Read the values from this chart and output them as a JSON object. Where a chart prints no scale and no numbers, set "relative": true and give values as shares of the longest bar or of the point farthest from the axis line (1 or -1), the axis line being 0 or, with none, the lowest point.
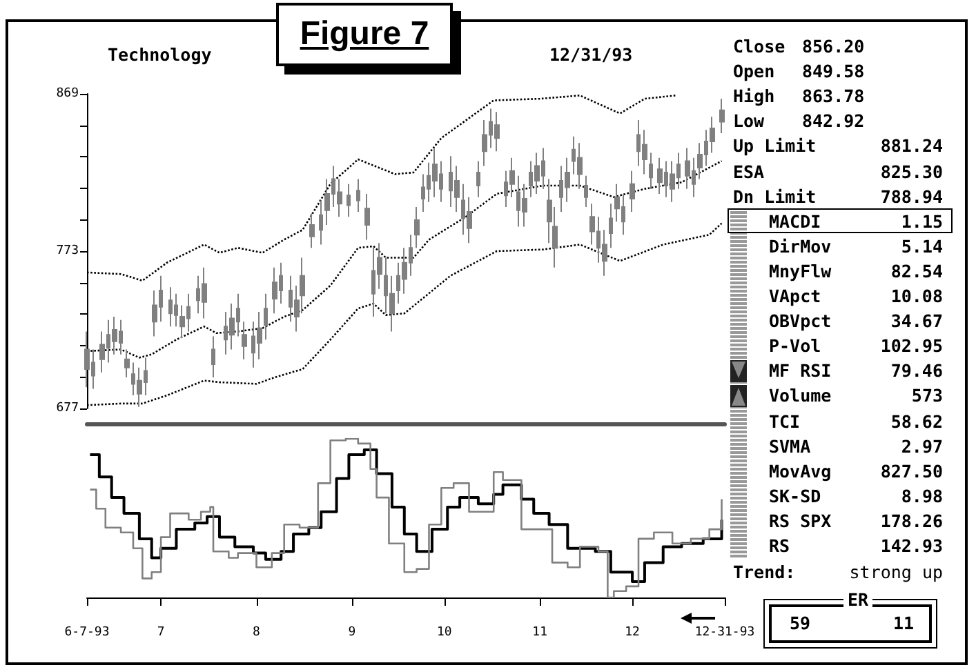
{
  "chart_data": [
    {
      "type": "candlestick",
      "title": "Technology",
      "subtitle": "12/31/93",
      "annotations": [
        "Figure 7"
      ],
      "x": [
        "1993-06-07",
        "1993-06-09",
        "1993-06-12",
        "1993-06-14",
        "1993-06-16",
        "1993-06-18",
        "1993-06-20",
        "1993-06-22",
        "1993-06-24",
        "1993-06-26",
        "1993-06-29",
        "1993-07-01",
        "1993-07-04",
        "1993-07-06",
        "1993-07-08",
        "1993-07-10",
        "1993-07-13",
        "1993-07-15",
        "1993-07-18",
        "1993-07-22",
        "1993-07-24",
        "1993-07-26",
        "1993-07-28",
        "1993-07-31",
        "1993-08-02",
        "1993-08-04",
        "1993-08-07",
        "1993-08-09",
        "1993-08-12",
        "1993-08-14",
        "1993-08-16",
        "1993-08-19",
        "1993-08-22",
        "1993-08-24",
        "1993-08-26",
        "1993-08-28",
        "1993-08-31",
        "1993-09-03",
        "1993-09-06",
        "1993-09-08",
        "1993-09-10",
        "1993-09-12",
        "1993-09-14",
        "1993-09-16",
        "1993-09-18",
        "1993-09-20",
        "1993-09-22",
        "1993-09-24",
        "1993-09-26",
        "1993-09-28",
        "1993-09-30",
        "1993-10-03",
        "1993-10-05",
        "1993-10-07",
        "1993-10-09",
        "1993-10-12",
        "1993-10-14",
        "1993-10-16",
        "1993-10-18",
        "1993-10-21",
        "1993-10-23",
        "1993-10-25",
        "1993-10-27",
        "1993-10-29",
        "1993-10-31",
        "1993-11-02",
        "1993-11-04",
        "1993-11-06",
        "1993-11-08",
        "1993-11-10",
        "1993-11-12",
        "1993-11-14",
        "1993-11-16",
        "1993-11-18",
        "1993-11-20",
        "1993-11-22",
        "1993-11-24",
        "1993-11-26",
        "1993-11-28",
        "1993-12-01",
        "1993-12-03",
        "1993-12-05",
        "1993-12-07",
        "1993-12-10",
        "1993-12-12",
        "1993-12-14",
        "1993-12-16",
        "1993-12-19",
        "1993-12-21",
        "1993-12-23",
        "1993-12-25",
        "1993-12-27",
        "1993-12-30"
      ],
      "ohlc": [
        [
          701,
          724,
          690,
          713
        ],
        [
          697,
          713,
          689,
          705
        ],
        [
          707,
          724,
          699,
          716
        ],
        [
          714,
          731,
          705,
          722
        ],
        [
          718,
          733,
          710,
          725
        ],
        [
          717,
          731,
          710,
          724
        ],
        [
          702,
          713,
          696,
          707
        ],
        [
          692,
          705,
          685,
          698
        ],
        [
          686,
          702,
          678,
          694
        ],
        [
          693,
          708,
          685,
          700
        ],
        [
          730,
          749,
          721,
          740
        ],
        [
          739,
          758,
          730,
          749
        ],
        [
          735,
          751,
          727,
          743
        ],
        [
          734,
          747,
          727,
          740
        ],
        [
          727,
          740,
          720,
          733
        ],
        [
          732,
          747,
          724,
          739
        ],
        [
          743,
          758,
          735,
          750
        ],
        [
          742,
          763,
          732,
          753
        ],
        [
          704,
          721,
          696,
          713
        ],
        [
          719,
          736,
          710,
          727
        ],
        [
          722,
          741,
          713,
          732
        ],
        [
          730,
          747,
          721,
          738
        ],
        [
          715,
          730,
          707,
          722
        ],
        [
          711,
          730,
          702,
          721
        ],
        [
          717,
          736,
          707,
          726
        ],
        [
          728,
          747,
          719,
          738
        ],
        [
          744,
          763,
          735,
          754
        ],
        [
          749,
          766,
          741,
          758
        ],
        [
          739,
          758,
          730,
          749
        ],
        [
          733,
          752,
          724,
          743
        ],
        [
          746,
          769,
          735,
          758
        ],
        [
          782,
          796,
          775,
          789
        ],
        [
          786,
          804,
          777,
          795
        ],
        [
          798,
          817,
          789,
          808
        ],
        [
          808,
          825,
          800,
          817
        ],
        [
          802,
          817,
          794,
          809
        ],
        [
          801,
          814,
          794,
          807
        ],
        [
          804,
          817,
          797,
          810
        ],
        [
          789,
          808,
          780,
          799
        ],
        [
          747,
          775,
          733,
          761
        ],
        [
          759,
          778,
          750,
          769
        ],
        [
          746,
          769,
          735,
          758
        ],
        [
          735,
          758,
          724,
          747
        ],
        [
          749,
          766,
          741,
          758
        ],
        [
          756,
          775,
          747,
          766
        ],
        [
          766,
          783,
          758,
          775
        ],
        [
          783,
          800,
          775,
          792
        ],
        [
          805,
          820,
          797,
          812
        ],
        [
          811,
          827,
          803,
          819
        ],
        [
          816,
          836,
          806,
          826
        ],
        [
          811,
          828,
          803,
          820
        ],
        [
          810,
          831,
          800,
          821
        ],
        [
          806,
          825,
          797,
          816
        ],
        [
          793,
          814,
          783,
          804
        ],
        [
          787,
          806,
          778,
          797
        ],
        [
          813,
          828,
          806,
          821
        ],
        [
          834,
          853,
          825,
          844
        ],
        [
          844,
          860,
          836,
          852
        ],
        [
          842,
          858,
          834,
          850
        ],
        [
          807,
          822,
          800,
          815
        ],
        [
          814,
          830,
          806,
          822
        ],
        [
          798,
          819,
          788,
          809
        ],
        [
          797,
          814,
          788,
          805
        ],
        [
          813,
          828,
          806,
          821
        ],
        [
          816,
          833,
          808,
          825
        ],
        [
          819,
          836,
          811,
          828
        ],
        [
          791,
          817,
          778,
          804
        ],
        [
          775,
          800,
          763,
          788
        ],
        [
          806,
          825,
          797,
          816
        ],
        [
          812,
          830,
          803,
          821
        ],
        [
          828,
          843,
          820,
          835
        ],
        [
          820,
          839,
          811,
          830
        ],
        [
          806,
          819,
          800,
          813
        ],
        [
          785,
          802,
          777,
          794
        ],
        [
          775,
          794,
          766,
          785
        ],
        [
          767,
          786,
          758,
          777
        ],
        [
          784,
          802,
          775,
          793
        ],
        [
          799,
          814,
          791,
          806
        ],
        [
          791,
          808,
          783,
          800
        ],
        [
          805,
          822,
          797,
          814
        ],
        [
          834,
          853,
          825,
          844
        ],
        [
          829,
          847,
          820,
          838
        ],
        [
          818,
          833,
          811,
          826
        ],
        [
          815,
          830,
          808,
          823
        ],
        [
          813,
          828,
          806,
          821
        ],
        [
          811,
          828,
          803,
          820
        ],
        [
          818,
          833,
          811,
          826
        ],
        [
          819,
          836,
          811,
          828
        ],
        [
          814,
          830,
          806,
          822
        ],
        [
          824,
          839,
          817,
          832
        ],
        [
          832,
          847,
          825,
          840
        ],
        [
          840,
          855,
          833,
          848
        ],
        [
          852,
          866,
          845,
          859
        ]
      ],
      "color": "#808080",
      "series": [
        {
          "type": "line",
          "color": "#000000",
          "line_style": "dotted",
          "marker": "none",
          "x": [
            "1993-06-07",
            "1993-06-18",
            "1993-06-25",
            "1993-07-03",
            "1993-07-15",
            "1993-07-20",
            "1993-07-26",
            "1993-08-03",
            "1993-08-10",
            "1993-08-16",
            "1993-08-25",
            "1993-09-03",
            "1993-09-15",
            "1993-09-21",
            "1993-09-30",
            "1993-10-17",
            "1993-11-01",
            "1993-11-14",
            "1993-11-27",
            "1993-12-05",
            "1993-12-15"
          ],
          "values": [
            760,
            759,
            755,
            766,
            777,
            772,
            775,
            772,
            780,
            786,
            814,
            829,
            820,
            821,
            842,
            865,
            866,
            868,
            857,
            866,
            868
          ]
        },
        {
          "type": "line",
          "color": "#000000",
          "line_style": "dotted",
          "marker": "none",
          "x": [
            "1993-06-07",
            "1993-06-18",
            "1993-06-24",
            "1993-06-28",
            "1993-07-06",
            "1993-07-15",
            "1993-07-19",
            "1993-07-26",
            "1993-08-03",
            "1993-08-10",
            "1993-08-16",
            "1993-08-25",
            "1993-09-03",
            "1993-09-08",
            "1993-09-12",
            "1993-09-21",
            "1993-09-26",
            "1993-10-08",
            "1993-10-18",
            "1993-11-02",
            "1993-11-14",
            "1993-11-25",
            "1993-12-05",
            "1993-12-17",
            "1993-12-30"
          ],
          "values": [
            712,
            713,
            708,
            710,
            719,
            727,
            723,
            724,
            726,
            733,
            737,
            752,
            775,
            776,
            769,
            769,
            780,
            794,
            808,
            813,
            813,
            806,
            811,
            815,
            828
          ]
        },
        {
          "type": "line",
          "color": "#000000",
          "line_style": "dotted",
          "marker": "none",
          "x": [
            "1993-06-07",
            "1993-06-18",
            "1993-06-25",
            "1993-07-03",
            "1993-07-15",
            "1993-07-20",
            "1993-08-01",
            "1993-08-07",
            "1993-08-16",
            "1993-08-25",
            "1993-09-03",
            "1993-09-08",
            "1993-09-12",
            "1993-09-18",
            "1993-10-03",
            "1993-10-18",
            "1993-11-02",
            "1993-11-14",
            "1993-11-27",
            "1993-12-11",
            "1993-12-26",
            "1993-12-30"
          ],
          "values": [
            679,
            680,
            680,
            685,
            694,
            693,
            692,
            696,
            701,
            719,
            738,
            741,
            734,
            735,
            758,
            773,
            774,
            777,
            767,
            777,
            783,
            790
          ]
        }
      ],
      "xlim": [
        "1993-06-07",
        "1993-12-31"
      ],
      "ylim": [
        677,
        869
      ],
      "yticks": [
        677,
        {
          "value": 696.2,
          "label": null
        },
        {
          "value": 715.4,
          "label": null
        },
        {
          "value": 734.6,
          "label": null
        },
        {
          "value": 753.8,
          "label": null
        },
        773,
        {
          "value": 792.2,
          "label": null
        },
        {
          "value": 811.4,
          "label": null
        },
        {
          "value": 830.6,
          "label": null
        },
        {
          "value": 849.8,
          "label": null
        },
        869
      ],
      "tick_labels": "y",
      "grid": false
    },
    {
      "type": "step",
      "relative": true,
      "tick_labels": "x",
      "grid": false,
      "marker": "none",
      "xlim": [
        "1993-06-07",
        "1993-12-31"
      ],
      "xticks": [
        {
          "value": "1993-06-07",
          "label": "6-7-93"
        },
        {
          "value": "1993-07-01",
          "label": "7"
        },
        {
          "value": "1993-08-01",
          "label": "8"
        },
        {
          "value": "1993-09-01",
          "label": "9"
        },
        {
          "value": "1993-10-01",
          "label": "10"
        },
        {
          "value": "1993-11-01",
          "label": "11"
        },
        {
          "value": "1993-12-01",
          "label": "12"
        },
        {
          "value": "1993-12-31",
          "label": "12-31-93"
        }
      ],
      "series": [
        {
          "color": "#000000",
          "x": [
            "1993-06-08",
            "1993-06-11",
            "1993-06-15",
            "1993-06-19",
            "1993-06-24",
            "1993-06-28",
            "1993-07-01",
            "1993-07-06",
            "1993-07-12",
            "1993-07-16",
            "1993-07-20",
            "1993-07-25",
            "1993-07-31",
            "1993-08-04",
            "1993-08-09",
            "1993-08-13",
            "1993-08-18",
            "1993-08-22",
            "1993-08-27",
            "1993-08-31",
            "1993-09-05",
            "1993-09-09",
            "1993-09-14",
            "1993-09-18",
            "1993-09-22",
            "1993-09-27",
            "1993-10-02",
            "1993-10-06",
            "1993-10-12",
            "1993-10-17",
            "1993-10-20",
            "1993-10-26",
            "1993-10-30",
            "1993-11-04",
            "1993-11-10",
            "1993-11-14",
            "1993-11-19",
            "1993-11-24",
            "1993-12-01",
            "1993-12-05",
            "1993-12-11",
            "1993-12-17",
            "1993-12-24",
            "1993-12-30"
          ],
          "values": [
            0.9,
            0.76,
            0.63,
            0.53,
            0.37,
            0.25,
            0.31,
            0.43,
            0.47,
            0.51,
            0.38,
            0.32,
            0.28,
            0.24,
            0.29,
            0.4,
            0.44,
            0.54,
            0.75,
            0.9,
            0.93,
            0.78,
            0.57,
            0.4,
            0.29,
            0.43,
            0.57,
            0.63,
            0.59,
            0.65,
            0.71,
            0.62,
            0.53,
            0.46,
            0.31,
            0.31,
            0.29,
            0.16,
            0.1,
            0.22,
            0.32,
            0.34,
            0.37,
            0.49
          ]
        },
        {
          "color": "#808080",
          "x": [
            "1993-06-08",
            "1993-06-10",
            "1993-06-13",
            "1993-06-18",
            "1993-06-22",
            "1993-06-25",
            "1993-06-28",
            "1993-07-01",
            "1993-07-04",
            "1993-07-10",
            "1993-07-14",
            "1993-07-17",
            "1993-07-18",
            "1993-07-23",
            "1993-07-26",
            "1993-08-01",
            "1993-08-06",
            "1993-08-10",
            "1993-08-15",
            "1993-08-21",
            "1993-08-25",
            "1993-08-30",
            "1993-09-03",
            "1993-09-07",
            "1993-09-09",
            "1993-09-13",
            "1993-09-18",
            "1993-09-22",
            "1993-09-26",
            "1993-09-30",
            "1993-10-04",
            "1993-10-09",
            "1993-10-13",
            "1993-10-17",
            "1993-10-20",
            "1993-10-26",
            "1993-10-31",
            "1993-11-05",
            "1993-11-10",
            "1993-11-14",
            "1993-11-20",
            "1993-11-23",
            "1993-11-25",
            "1993-11-29",
            "1993-12-03",
            "1993-12-08",
            "1993-12-14",
            "1993-12-20",
            "1993-12-26",
            "1993-12-30"
          ],
          "values": [
            0.68,
            0.56,
            0.44,
            0.41,
            0.31,
            0.12,
            0.16,
            0.38,
            0.53,
            0.49,
            0.54,
            0.57,
            0.29,
            0.25,
            0.28,
            0.19,
            0.28,
            0.46,
            0.44,
            0.72,
            0.99,
            1,
            0.97,
            0.81,
            0.63,
            0.34,
            0.16,
            0.18,
            0.46,
            0.69,
            0.72,
            0.54,
            0.54,
            0.79,
            0.74,
            0.43,
            0.43,
            0.22,
            0.19,
            0.32,
            0.29,
            0,
            0.04,
            0.07,
            0.37,
            0.41,
            0.34,
            0.37,
            0.43,
            0.62
          ]
        }
      ]
    },
    {
      "type": "other",
      "categories": [
        "Close",
        "Open",
        "High",
        "Low",
        "Up Limit",
        "ESA",
        "Dn Limit",
        "MACDI",
        "DirMov",
        "MnyFlw",
        "VApct",
        "OBVpct",
        "P-Vol",
        "MF RSI",
        "Volume",
        "TCI",
        "SVMA",
        "MovAvg",
        "SK-SD",
        "RS SPX",
        "RS"
      ],
      "value_labels": [
        "856.20",
        "849.58",
        "863.78",
        "842.92",
        "881.24",
        "825.30",
        "788.94",
        "1.15",
        "5.14",
        "82.54",
        "10.08",
        "34.67",
        "102.95",
        "79.46",
        "573",
        "58.62",
        "2.97",
        "827.50",
        "8.98",
        "178.26",
        "142.93"
      ],
      "annotations": [
        "Trend:",
        "strong up",
        "ER",
        "59",
        "11"
      ]
    }
  ]
}
